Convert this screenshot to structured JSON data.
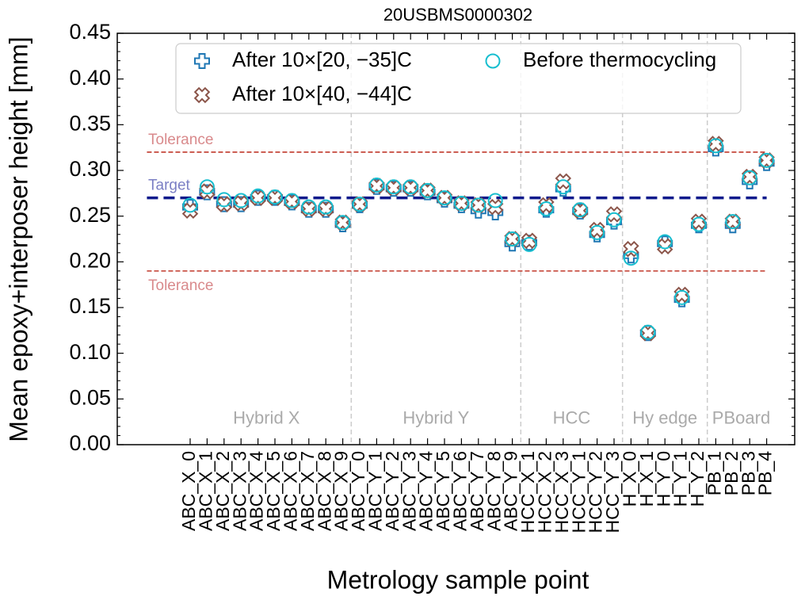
{
  "chart_data": {
    "type": "scatter",
    "title": "20USBMS0000302",
    "xlabel": "Metrology sample point",
    "ylabel": "Mean epoxy+interposer height [mm]",
    "categories": [
      "ABC_X_0",
      "ABC_X_1",
      "ABC_X_2",
      "ABC_X_3",
      "ABC_X_4",
      "ABC_X_5",
      "ABC_X_6",
      "ABC_X_7",
      "ABC_X_8",
      "ABC_X_9",
      "ABC_Y_0",
      "ABC_Y_1",
      "ABC_Y_2",
      "ABC_Y_3",
      "ABC_Y_4",
      "ABC_Y_5",
      "ABC_Y_6",
      "ABC_Y_7",
      "ABC_Y_8",
      "ABC_Y_9",
      "HCC_X_1",
      "HCC_X_2",
      "HCC_X_3",
      "HCC_Y_1",
      "HCC_Y_2",
      "HCC_Y_3",
      "H_X_0",
      "H_X_1",
      "H_Y_0",
      "H_Y_1",
      "H_Y_2",
      "PB_1",
      "PB_2",
      "PB_3",
      "PB_4"
    ],
    "series": [
      {
        "name": "After 10×[20, −35]C",
        "color": "#1f77b4",
        "marker": "plus",
        "values": [
          0.26,
          0.276,
          0.263,
          0.263,
          0.27,
          0.27,
          0.265,
          0.257,
          0.257,
          0.241,
          0.262,
          0.282,
          0.28,
          0.28,
          0.276,
          0.268,
          0.262,
          0.256,
          0.254,
          0.22,
          0.221,
          0.257,
          0.28,
          0.255,
          0.23,
          0.244,
          0.207,
          0.122,
          0.22,
          0.159,
          0.24,
          0.324,
          0.24,
          0.288,
          0.308
        ]
      },
      {
        "name": "After 10×[40, −44]C",
        "color": "#8c564b",
        "marker": "x",
        "values": [
          0.256,
          0.277,
          0.263,
          0.264,
          0.27,
          0.27,
          0.266,
          0.258,
          0.258,
          0.243,
          0.263,
          0.283,
          0.281,
          0.281,
          0.278,
          0.27,
          0.264,
          0.262,
          0.26,
          0.225,
          0.223,
          0.262,
          0.288,
          0.256,
          0.235,
          0.252,
          0.214,
          0.122,
          0.217,
          0.164,
          0.244,
          0.329,
          0.244,
          0.293,
          0.311
        ]
      },
      {
        "name": "Before thermocycling",
        "color": "#17becf",
        "marker": "circle",
        "values": [
          0.262,
          0.282,
          0.268,
          0.267,
          0.272,
          0.271,
          0.267,
          0.26,
          0.26,
          0.243,
          0.263,
          0.284,
          0.282,
          0.282,
          0.278,
          0.27,
          0.264,
          0.262,
          0.267,
          0.225,
          0.219,
          0.258,
          0.282,
          0.257,
          0.232,
          0.246,
          0.204,
          0.123,
          0.222,
          0.161,
          0.241,
          0.327,
          0.244,
          0.292,
          0.311
        ]
      }
    ],
    "reference_lines": [
      {
        "label": "Tolerance",
        "value": 0.32,
        "color": "#c0392b",
        "text_color": "#d98a8c"
      },
      {
        "label": "Target",
        "value": 0.27,
        "color": "#0b1a8c",
        "text_color": "#7b7fc4"
      },
      {
        "label": "Tolerance",
        "value": 0.19,
        "color": "#c0392b",
        "text_color": "#d98a8c"
      }
    ],
    "groups": [
      {
        "label": "Hybrid X",
        "count": 10
      },
      {
        "label": "Hybrid Y",
        "count": 10
      },
      {
        "label": "HCC",
        "count": 6
      },
      {
        "label": "Hy edge",
        "count": 5
      },
      {
        "label": "PBoard",
        "count": 4
      }
    ],
    "ylim": [
      0,
      0.45
    ],
    "yticks": [
      {
        "value": 0,
        "label": "0.00"
      },
      {
        "value": 0.05,
        "label": "0.05"
      },
      {
        "value": 0.1,
        "label": "0.10"
      },
      {
        "value": 0.15,
        "label": "0.15"
      },
      {
        "value": 0.2,
        "label": "0.20"
      },
      {
        "value": 0.25,
        "label": "0.25"
      },
      {
        "value": 0.3,
        "label": "0.30"
      },
      {
        "value": 0.35,
        "label": "0.35"
      },
      {
        "value": 0.4,
        "label": "0.40"
      },
      {
        "value": 0.45,
        "label": "0.45"
      }
    ],
    "legend": "upper center"
  }
}
